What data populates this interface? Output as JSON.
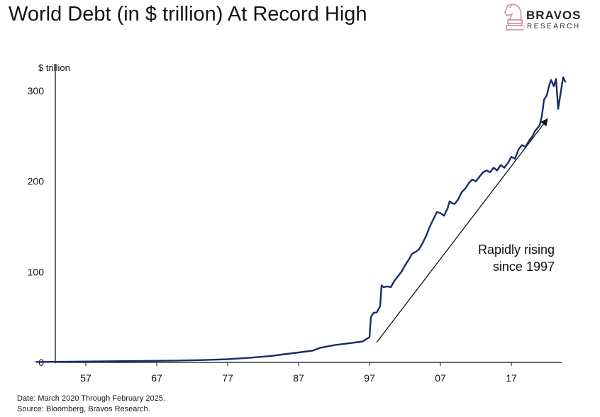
{
  "title": "World Debt (in $ trillion) At Record High",
  "logo": {
    "name": "BRAVOS",
    "sub": "RESEARCH",
    "accent": "#d89aa8"
  },
  "footnotes": {
    "date": "Date: March 2020 Through February 2025.",
    "source": "Source: Bloomberg, Bravos Research."
  },
  "chart_data": {
    "type": "line",
    "ylabel": "$ trillion",
    "ylim": [
      0,
      310
    ],
    "xlim": [
      1950,
      2025
    ],
    "yticks": [
      0,
      100,
      200,
      300
    ],
    "xticks": [
      {
        "x": 1957,
        "label": "57"
      },
      {
        "x": 1967,
        "label": "67"
      },
      {
        "x": 1977,
        "label": "77"
      },
      {
        "x": 1987,
        "label": "87"
      },
      {
        "x": 1997,
        "label": "97"
      },
      {
        "x": 2007,
        "label": "07"
      },
      {
        "x": 2017,
        "label": "17"
      }
    ],
    "line_color": "#1c2a6b",
    "annotation": {
      "lines": [
        "Rapidly rising",
        "since 1997"
      ],
      "arrow_from": [
        1998,
        22
      ],
      "arrow_to": [
        2022,
        268
      ]
    },
    "series": [
      {
        "x": [
          1950,
          1955,
          1960,
          1965,
          1970,
          1973,
          1975,
          1977,
          1980,
          1983,
          1985,
          1987,
          1989,
          1990,
          1992,
          1994,
          1996,
          1997,
          1997.2,
          1997.6,
          1998,
          1998.5,
          1998.7,
          1999,
          1999.5,
          2000,
          2000.5,
          2001,
          2001.5,
          2002,
          2002.5,
          2003,
          2003.5,
          2004,
          2004.5,
          2005,
          2005.5,
          2006,
          2006.5,
          2007,
          2007.5,
          2008,
          2008.3,
          2008.6,
          2009,
          2009.5,
          2010,
          2010.5,
          2011,
          2011.5,
          2012,
          2012.5,
          2013,
          2013.5,
          2014,
          2014.5,
          2015,
          2015.5,
          2016,
          2016.5,
          2017,
          2017.5,
          2018,
          2018.5,
          2019,
          2019.5,
          2020,
          2020.3,
          2020.6,
          2021,
          2021.3,
          2021.6,
          2022,
          2022.3,
          2022.6,
          2023,
          2023.3,
          2023.6,
          2024,
          2024.3,
          2024.6
        ],
        "y": [
          0.5,
          0.8,
          1.2,
          1.6,
          2.0,
          2.5,
          3.0,
          3.5,
          5.0,
          7.0,
          9.0,
          11.0,
          13.0,
          16.0,
          19.0,
          21.0,
          23.0,
          28.0,
          50.0,
          55.0,
          55.0,
          62.0,
          85.0,
          83.0,
          84.0,
          83.0,
          90.0,
          95.0,
          100.0,
          107.0,
          113.0,
          120.0,
          122.0,
          125.0,
          132.0,
          140.0,
          150.0,
          158.0,
          166.0,
          165.0,
          162.0,
          170.0,
          178.0,
          176.0,
          175.0,
          180.0,
          188.0,
          192.0,
          198.0,
          202.0,
          200.0,
          205.0,
          210.0,
          212.0,
          210.0,
          215.0,
          212.0,
          218.0,
          215.0,
          220.0,
          227.0,
          225.0,
          235.0,
          240.0,
          238.0,
          245.0,
          250.0,
          255.0,
          258.0,
          262.0,
          272.0,
          290.0,
          295.0,
          305.0,
          312.0,
          305.0,
          313.0,
          280.0,
          300.0,
          315.0,
          310.0
        ]
      }
    ]
  }
}
